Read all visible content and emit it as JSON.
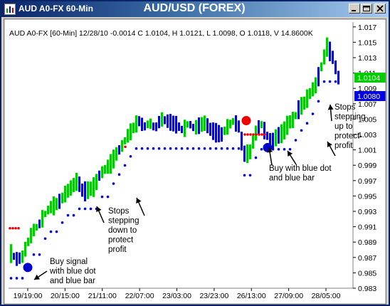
{
  "window": {
    "title": "AUD A0-FX 60-Min",
    "chart_heading": "AUD/USD (FOREX)",
    "icons": [
      "chart-app-icon",
      "minimize-icon",
      "maximize-icon",
      "close-icon"
    ]
  },
  "colors": {
    "background": "#ffffff",
    "up_bar": "#00cc00",
    "down_bar": "#0000cc",
    "blue_dot": "#0000cc",
    "red_dot": "#ee0000",
    "current_price_box": "#00cc00",
    "stop_price_box": "#0000dd"
  },
  "chart_data": {
    "type": "bar",
    "title": "AUD/USD (FOREX)",
    "info_line": "AUD A0-FX [60-Min] 12/28/10  -0.0014  C 1.0104, H 1.0121, L 1.0098, O 1.0118, V 14.8600K",
    "ylim": [
      0.983,
      1.018
    ],
    "y_ticks": [
      "1.017",
      "1.015",
      "1.013",
      "1.011",
      "1.009",
      "1.007",
      "1.005",
      "1.003",
      "1.001",
      "0.999",
      "0.997",
      "0.995",
      "0.993",
      "0.991",
      "0.989",
      "0.987",
      "0.985",
      "0.983"
    ],
    "x_ticks": [
      "19/19:00",
      "20/15:00",
      "21/11:00",
      "22/07:00",
      "23/03:00",
      "23/23:00",
      "26/13:00",
      "27/09:00",
      "28/05:00"
    ],
    "price_labels": {
      "current": "1.0104",
      "current_value": 1.0104,
      "stop": "1.0080",
      "stop_value": 1.008
    },
    "close_path": [
      0.9875,
      0.9868,
      0.987,
      0.9889,
      0.9905,
      0.9912,
      0.9925,
      0.9935,
      0.9938,
      0.9945,
      0.9955,
      0.9962,
      0.997,
      0.9955,
      0.9958,
      0.9962,
      0.9978,
      0.9985,
      0.9992,
      1.0005,
      1.0015,
      1.0028,
      1.0038,
      1.0048,
      1.004,
      1.0045,
      1.0038,
      1.005,
      1.0048,
      1.0045,
      1.0042,
      1.0035,
      1.0045,
      1.0038,
      1.0042,
      1.0045,
      1.0036,
      1.0032,
      1.003,
      1.004,
      1.0047,
      1.0042,
      1.0005,
      1.0005,
      1.003,
      1.0045,
      1.003,
      1.002,
      1.0028,
      1.0032,
      1.0045,
      1.005,
      1.0065,
      1.0072,
      1.0085,
      1.0095,
      1.012,
      1.0145,
      1.013,
      1.0104
    ],
    "annotations": [
      {
        "id": "buy-signal",
        "lines": [
          "Buy signal",
          "with blue dot",
          "and blue bar"
        ]
      },
      {
        "id": "stops-down",
        "lines": [
          "Stops",
          "stepping",
          "down to",
          "protect",
          "profit"
        ]
      },
      {
        "id": "buy-blue",
        "lines": [
          "Buy with blue dot",
          "and blue bar"
        ]
      },
      {
        "id": "stops-up",
        "lines": [
          "Stops",
          "stepping",
          "up to",
          "protect-",
          "profit"
        ]
      }
    ],
    "signals": [
      {
        "type": "buy",
        "color": "blue",
        "y": 0.9857
      },
      {
        "type": "sell",
        "color": "red",
        "y": 1.0048
      },
      {
        "type": "buy",
        "color": "blue",
        "y": 1.0013
      }
    ]
  }
}
